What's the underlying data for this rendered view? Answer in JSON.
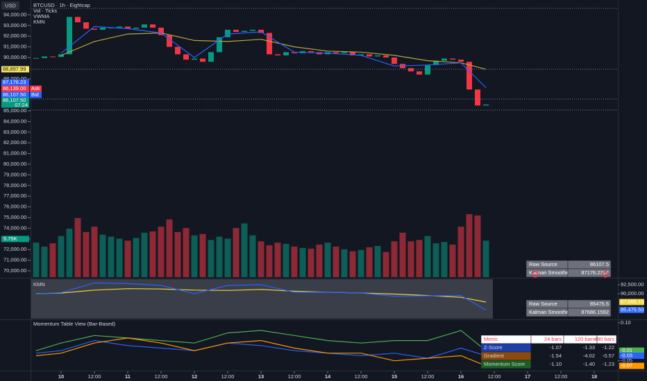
{
  "chart_data": [
    {
      "type": "candlestick",
      "currency": "USD",
      "title": "BTCUSD · 1h · Eightcap",
      "xlim": [
        -11,
        200.5
      ],
      "ylim": [
        69416,
        95390
      ],
      "yticks": [
        {
          "value": 94000,
          "label": "94,000.00"
        },
        {
          "value": 93000,
          "label": "93,000.00"
        },
        {
          "value": 92000,
          "label": "92,000.00"
        },
        {
          "value": 91000,
          "label": "91,000.00"
        },
        {
          "value": 90000,
          "label": "90,000.00"
        },
        {
          "value": 88000,
          "label": "88,000.00"
        },
        {
          "value": 85000,
          "label": "85,000.00"
        },
        {
          "value": 84000,
          "label": "84,000.00"
        },
        {
          "value": 83000,
          "label": "83,000.00"
        },
        {
          "value": 82000,
          "label": "82,000.00"
        },
        {
          "value": 81000,
          "label": "81,000.00"
        },
        {
          "value": 80000,
          "label": "80,000.00"
        },
        {
          "value": 79000,
          "label": "79,000.00"
        },
        {
          "value": 78000,
          "label": "78,000.00"
        },
        {
          "value": 77000,
          "label": "77,000.00"
        },
        {
          "value": 76000,
          "label": "76,000.00"
        },
        {
          "value": 75000,
          "label": "75,000.00"
        },
        {
          "value": 74000,
          "label": "74,000.00"
        },
        {
          "value": 73000,
          "label": "73,000.00"
        },
        {
          "value": 72000,
          "label": "72,000.00"
        },
        {
          "value": 71000,
          "label": "71,000.00"
        },
        {
          "value": 70000,
          "label": "70,000.00"
        }
      ],
      "x": [
        -9,
        -6,
        -3,
        0,
        3,
        6,
        9,
        12,
        15,
        18,
        21,
        24,
        27,
        30,
        33,
        36,
        39,
        42,
        45,
        48,
        51,
        54,
        57,
        60,
        63,
        66,
        69,
        72,
        75,
        78,
        81,
        84,
        87,
        90,
        93,
        96,
        99,
        102,
        105,
        108,
        111,
        114,
        117,
        120,
        123,
        126,
        129,
        132,
        135,
        138,
        141,
        144,
        147,
        150,
        153
      ],
      "values": [
        89950,
        90100,
        90050,
        90300,
        93800,
        93300,
        92700,
        92600,
        92800,
        92800,
        92900,
        92700,
        92800,
        93100,
        92800,
        92100,
        91000,
        90300,
        89800,
        89900,
        89600,
        90500,
        91900,
        92600,
        92400,
        92500,
        92600,
        92300,
        90300,
        90200,
        90500,
        90400,
        90600,
        90500,
        90300,
        90500,
        90400,
        90500,
        90200,
        90300,
        90100,
        90200,
        90000,
        89400,
        89000,
        88700,
        88400,
        89300,
        89700,
        89900,
        89800,
        89600,
        87000,
        85500,
        85600
      ],
      "up_color": "#089981",
      "down_color": "#f23645",
      "series": [
        {
          "name": "VWMA",
          "color": "#b5a642",
          "x": [
            0,
            12,
            24,
            36,
            48,
            60,
            72,
            84,
            96,
            108,
            120,
            132,
            144,
            153
          ],
          "values": [
            90200,
            91500,
            92200,
            92300,
            91600,
            91500,
            91700,
            91000,
            90600,
            90500,
            90200,
            89700,
            89500,
            88900
          ]
        },
        {
          "name": "KMN",
          "color": "#2962ff",
          "x": [
            0,
            12,
            24,
            36,
            48,
            60,
            72,
            84,
            96,
            108,
            120,
            132,
            144,
            153
          ],
          "values": [
            90400,
            92900,
            92700,
            92300,
            90000,
            92200,
            92400,
            90500,
            90400,
            90200,
            89200,
            89300,
            89500,
            87176
          ]
        }
      ],
      "volume": {
        "name": "Vol · Ticks",
        "ylim": [
          0,
          41800
        ],
        "marker": {
          "value": 5750,
          "label": "5.75K"
        },
        "values": [
          5200,
          4600,
          5100,
          6200,
          7300,
          8900,
          6800,
          7600,
          6400,
          6100,
          5800,
          5500,
          5900,
          6700,
          6900,
          7600,
          8700,
          6800,
          7400,
          6300,
          6500,
          5600,
          6100,
          5800,
          7400,
          8100,
          6300,
          5400,
          4800,
          5200,
          5000,
          4600,
          4400,
          4300,
          4900,
          5200,
          4600,
          4200,
          3900,
          4100,
          4500,
          4700,
          3800,
          5400,
          6700,
          5400,
          5600,
          6200,
          5100,
          5300,
          4900,
          7600,
          9500,
          9300,
          5500
        ]
      },
      "price_tags": [
        {
          "value": 88897.99,
          "label": "88,897.99",
          "color": "#f5e663"
        },
        {
          "value": 87176.23,
          "label": "87,176.23",
          "color": "#2962ff"
        },
        {
          "value": 86139.0,
          "label": "86,139.00",
          "color": "#f23645",
          "tag": "Ask"
        },
        {
          "value": 86107.5,
          "label": "86,107.50",
          "color": "#2962ff",
          "tag": "Bid"
        },
        {
          "value": 86107.5,
          "label": "86,107.50",
          "color": "#089981",
          "sub": "07:24"
        }
      ],
      "table": {
        "rows": [
          [
            "Raw Source",
            "86107.5"
          ],
          [
            "Kalman Smoothed",
            "87176.2324"
          ]
        ]
      }
    },
    {
      "type": "line",
      "title": "KMN",
      "xlim": [
        -11,
        200.5
      ],
      "ylim": [
        83077,
        94038
      ],
      "yticks": [
        {
          "value": 92500,
          "label": "92,500.00"
        },
        {
          "value": 90000,
          "label": "90,000.00"
        }
      ],
      "series": [
        {
          "color": "#f0d43a",
          "last_label": "87,686.16",
          "x": [
            -9,
            0,
            12,
            24,
            36,
            48,
            60,
            72,
            84,
            96,
            108,
            120,
            132,
            144,
            153
          ],
          "values": [
            90000,
            90200,
            91000,
            91400,
            91300,
            91000,
            90900,
            91200,
            90700,
            90400,
            90200,
            89900,
            89500,
            89000,
            87686.16
          ]
        },
        {
          "color": "#2962ff",
          "last_label": "85,475.50",
          "x": [
            -9,
            0,
            12,
            24,
            36,
            48,
            60,
            72,
            84,
            96,
            108,
            120,
            132,
            144,
            153
          ],
          "values": [
            89950,
            90300,
            93000,
            92800,
            92300,
            90000,
            92300,
            92500,
            90400,
            90400,
            90200,
            89300,
            89400,
            89500,
            85475.5
          ]
        }
      ],
      "table": {
        "rows": [
          [
            "Raw Source",
            "85475.5"
          ],
          [
            "Kalman Smoothed",
            "87686.1592"
          ]
        ]
      }
    },
    {
      "type": "line",
      "title": "Momentum Table View (Bar-Based)",
      "xlim": [
        -11,
        200.5
      ],
      "ylim": [
        -0.089,
        0.111
      ],
      "yticks": [
        {
          "value": 0.1,
          "label": "0.10"
        },
        {
          "value": -0.05,
          "label": "-0.05"
        }
      ],
      "xticks": [
        {
          "value": 0,
          "label": "10"
        },
        {
          "value": 12,
          "label": "12:00"
        },
        {
          "value": 24,
          "label": "11"
        },
        {
          "value": 36,
          "label": "12:00"
        },
        {
          "value": 48,
          "label": "12"
        },
        {
          "value": 60,
          "label": "12:00"
        },
        {
          "value": 72,
          "label": "13"
        },
        {
          "value": 84,
          "label": "12:00"
        },
        {
          "value": 96,
          "label": "14"
        },
        {
          "value": 108,
          "label": "12:00"
        },
        {
          "value": 120,
          "label": "15"
        },
        {
          "value": 132,
          "label": "12:00"
        },
        {
          "value": 144,
          "label": "16"
        },
        {
          "value": 156,
          "label": "12:00"
        },
        {
          "value": 168,
          "label": "17"
        },
        {
          "value": 180,
          "label": "12:00"
        },
        {
          "value": 192,
          "label": "18"
        }
      ],
      "series": [
        {
          "color": "#4caf50",
          "last_label": "-0.01",
          "x": [
            -9,
            0,
            12,
            24,
            36,
            48,
            60,
            72,
            84,
            96,
            108,
            120,
            132,
            144,
            153
          ],
          "values": [
            -0.01,
            0.02,
            0.05,
            0.04,
            0.03,
            0.02,
            0.06,
            0.07,
            0.05,
            0.03,
            0.02,
            0.03,
            0.03,
            0.07,
            -0.01
          ]
        },
        {
          "color": "#2962ff",
          "last_label": "-0.03",
          "x": [
            -9,
            0,
            12,
            24,
            36,
            48,
            60,
            72,
            84,
            96,
            108,
            120,
            132,
            144,
            153
          ],
          "values": [
            -0.02,
            -0.01,
            0.03,
            0.01,
            0.0,
            -0.01,
            0.02,
            0.01,
            -0.01,
            -0.02,
            -0.03,
            -0.02,
            -0.04,
            0.0,
            -0.03
          ]
        },
        {
          "color": "#ff9800",
          "last_label": "-0.07",
          "x": [
            -9,
            0,
            12,
            24,
            36,
            48,
            60,
            72,
            84,
            96,
            108,
            120,
            132,
            144,
            153
          ],
          "values": [
            -0.03,
            -0.02,
            0.02,
            0.04,
            0.02,
            -0.01,
            0.02,
            0.03,
            0.0,
            -0.02,
            -0.02,
            -0.05,
            -0.04,
            -0.03,
            -0.07
          ]
        }
      ],
      "table": {
        "header": [
          "Metric",
          "24 bars",
          "120 bars",
          "480 bars"
        ],
        "rows": [
          [
            "Z-Score",
            "-1.07",
            "-1.33",
            "-1.22"
          ],
          [
            "Gradient",
            "-1.54",
            "-4.02",
            "-0.57"
          ],
          [
            "Momentum Score",
            "-1.10",
            "-1.40",
            "-1.23"
          ]
        ],
        "row_colors": [
          "#1e3fa8",
          "#8a4a0e",
          "#1d5e24"
        ]
      }
    }
  ]
}
